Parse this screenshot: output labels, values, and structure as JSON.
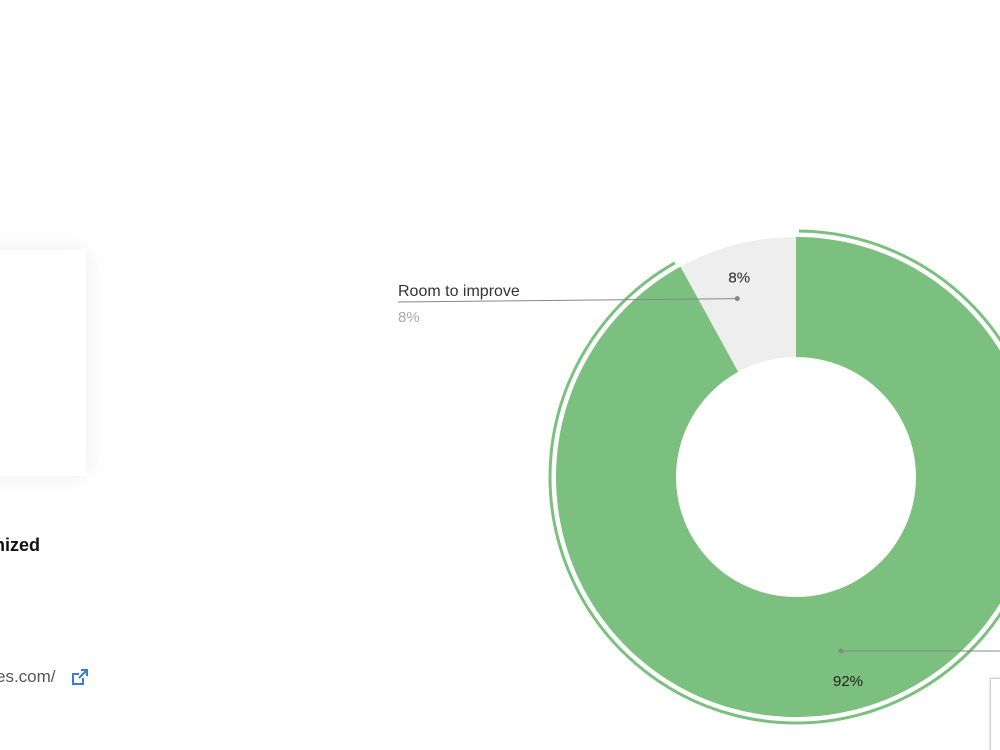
{
  "status_title": "nized",
  "site_link_text": "es.com/",
  "colors": {
    "optimized": "#7bc07f",
    "improve": "#eeeeee",
    "ring": "#7bc07f",
    "leader": "#888888",
    "label_text": "#333333",
    "label_sub": "#aaaaaa",
    "link_icon": "#3a7bd5"
  },
  "chart_data": {
    "type": "pie",
    "variant": "donut",
    "slices": [
      {
        "name": "Room to improve",
        "value": 8,
        "value_label": "8%",
        "color": "#eeeeee"
      },
      {
        "name": "",
        "value": 92,
        "value_label": "92%",
        "color": "#7bc07f"
      }
    ],
    "callout": {
      "label": "Room to improve",
      "value_label": "8%"
    }
  }
}
